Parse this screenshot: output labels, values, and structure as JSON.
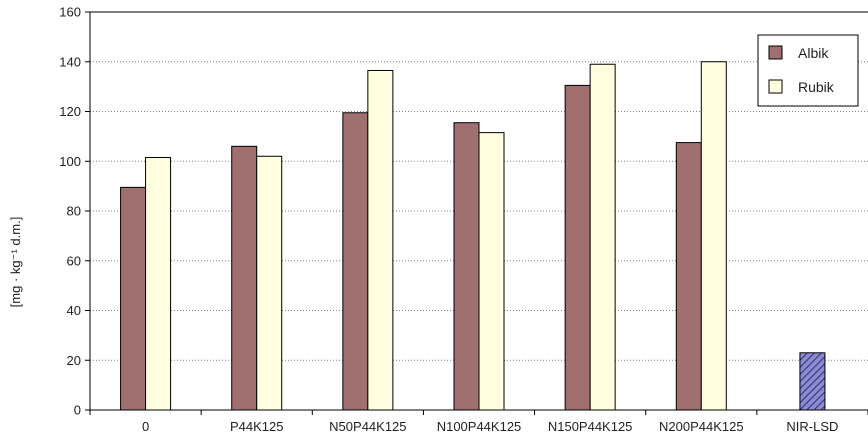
{
  "chart_data": {
    "type": "bar",
    "categories": [
      "0",
      "P44K125",
      "N50P44K125",
      "N100P44K125",
      "N150P44K125",
      "N200P44K125"
    ],
    "series": [
      {
        "name": "Albik",
        "values": [
          89.5,
          106,
          119.5,
          115.5,
          130.5,
          107.5
        ]
      },
      {
        "name": "Rubik",
        "values": [
          101.5,
          102,
          136.5,
          111.5,
          139,
          140
        ]
      }
    ],
    "lsd": {
      "label": "NIR-LSD",
      "value": 23
    },
    "ylim": [
      0,
      160
    ],
    "yticks": [
      0,
      20,
      40,
      60,
      80,
      100,
      120,
      140,
      160
    ],
    "ylabel": "[mg · kg⁻¹ d.m.]",
    "grid": true,
    "legend": "top-right",
    "colors": {
      "Albik": "#a07070",
      "Rubik": "#ffffe0",
      "lsd": "#8a8ad8",
      "grid": "#7f7f7f"
    }
  }
}
